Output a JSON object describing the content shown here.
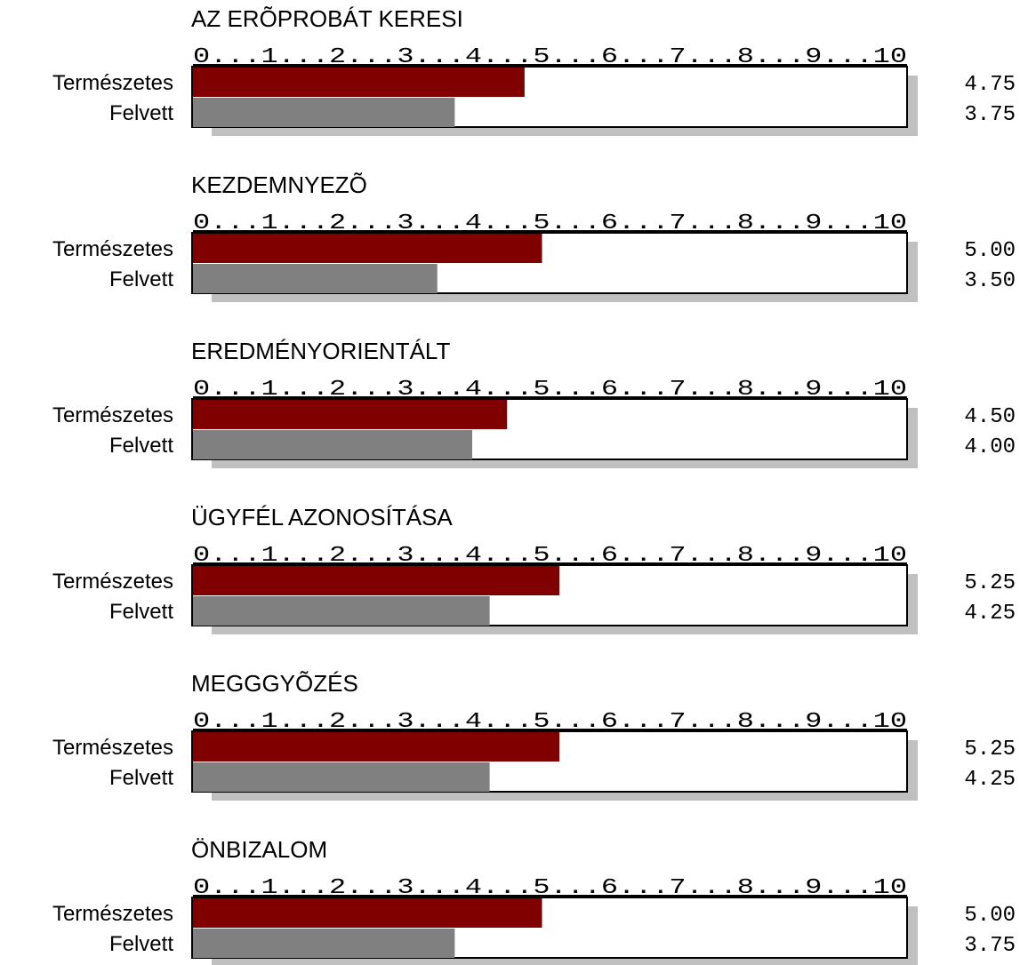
{
  "chart_data": [
    {
      "type": "bar",
      "title": "AZ ERÕPROBÁT KERESI",
      "scale_label": "0...1...2...3...4...5...6...7...8...9...10",
      "categories": [
        "Természetes",
        "Felvett"
      ],
      "values": [
        4.75,
        3.75
      ],
      "value_labels": [
        "4.75",
        "3.75"
      ],
      "colors": [
        "#800000",
        "#808080"
      ],
      "xlim": [
        0,
        10
      ]
    },
    {
      "type": "bar",
      "title": "KEZDEMNYEZÕ",
      "scale_label": "0...1...2...3...4...5...6...7...8...9...10",
      "categories": [
        "Természetes",
        "Felvett"
      ],
      "values": [
        5.0,
        3.5
      ],
      "value_labels": [
        "5.00",
        "3.50"
      ],
      "colors": [
        "#800000",
        "#808080"
      ],
      "xlim": [
        0,
        10
      ]
    },
    {
      "type": "bar",
      "title": "EREDMÉNYORIENTÁLT",
      "scale_label": "0...1...2...3...4...5...6...7...8...9...10",
      "categories": [
        "Természetes",
        "Felvett"
      ],
      "values": [
        4.5,
        4.0
      ],
      "value_labels": [
        "4.50",
        "4.00"
      ],
      "colors": [
        "#800000",
        "#808080"
      ],
      "xlim": [
        0,
        10
      ]
    },
    {
      "type": "bar",
      "title": "ÜGYFÉL AZONOSÍTÁSA",
      "scale_label": "0...1...2...3...4...5...6...7...8...9...10",
      "categories": [
        "Természetes",
        "Felvett"
      ],
      "values": [
        5.25,
        4.25
      ],
      "value_labels": [
        "5.25",
        "4.25"
      ],
      "colors": [
        "#800000",
        "#808080"
      ],
      "xlim": [
        0,
        10
      ]
    },
    {
      "type": "bar",
      "title": "MEGGGYÕZÉS",
      "scale_label": "0...1...2...3...4...5...6...7...8...9...10",
      "categories": [
        "Természetes",
        "Felvett"
      ],
      "values": [
        5.25,
        4.25
      ],
      "value_labels": [
        "5.25",
        "4.25"
      ],
      "colors": [
        "#800000",
        "#808080"
      ],
      "xlim": [
        0,
        10
      ]
    },
    {
      "type": "bar",
      "title": "ÖNBIZALOM",
      "scale_label": "0...1...2...3...4...5...6...7...8...9...10",
      "categories": [
        "Természetes",
        "Felvett"
      ],
      "values": [
        5.0,
        3.75
      ],
      "value_labels": [
        "5.00",
        "3.75"
      ],
      "colors": [
        "#800000",
        "#808080"
      ],
      "xlim": [
        0,
        10
      ]
    }
  ]
}
